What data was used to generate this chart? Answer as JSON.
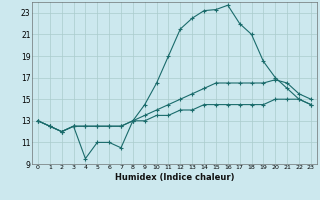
{
  "xlabel": "Humidex (Indice chaleur)",
  "background_color": "#cce8ee",
  "grid_color": "#aacccc",
  "line_color": "#1a6b6b",
  "xlim": [
    -0.5,
    23.5
  ],
  "ylim": [
    9,
    24
  ],
  "yticks": [
    9,
    11,
    13,
    15,
    17,
    19,
    21,
    23
  ],
  "xticks": [
    0,
    1,
    2,
    3,
    4,
    5,
    6,
    7,
    8,
    9,
    10,
    11,
    12,
    13,
    14,
    15,
    16,
    17,
    18,
    19,
    20,
    21,
    22,
    23
  ],
  "hours": [
    0,
    1,
    2,
    3,
    4,
    5,
    6,
    7,
    8,
    9,
    10,
    11,
    12,
    13,
    14,
    15,
    16,
    17,
    18,
    19,
    20,
    21,
    22,
    23
  ],
  "line_top": [
    13.0,
    12.5,
    12.0,
    12.5,
    9.5,
    11.0,
    11.0,
    10.5,
    13.0,
    14.5,
    16.5,
    19.0,
    21.5,
    22.5,
    23.2,
    23.3,
    23.7,
    22.0,
    21.0,
    18.5,
    17.0,
    16.0,
    15.0,
    14.5
  ],
  "line_mid": [
    13.0,
    12.5,
    12.0,
    12.5,
    12.5,
    12.5,
    12.5,
    12.5,
    13.0,
    13.5,
    14.0,
    14.5,
    15.0,
    15.5,
    16.0,
    16.5,
    16.5,
    16.5,
    16.5,
    16.5,
    16.8,
    16.5,
    15.5,
    15.0
  ],
  "line_bot": [
    13.0,
    12.5,
    12.0,
    12.5,
    12.5,
    12.5,
    12.5,
    12.5,
    13.0,
    13.0,
    13.5,
    13.5,
    14.0,
    14.0,
    14.5,
    14.5,
    14.5,
    14.5,
    14.5,
    14.5,
    15.0,
    15.0,
    15.0,
    14.5
  ]
}
